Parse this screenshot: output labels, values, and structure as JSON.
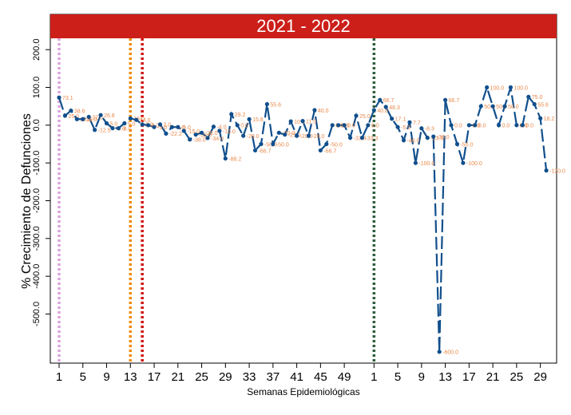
{
  "chart_data": {
    "type": "line",
    "title": "2021 - 2022",
    "xlabel": "Semanas Epidemiológicas",
    "ylabel": "% Crecimiento de Defunciones",
    "categories": [
      "1",
      null,
      null,
      null,
      "5",
      null,
      null,
      null,
      "9",
      null,
      null,
      null,
      "13",
      null,
      null,
      null,
      "17",
      null,
      null,
      null,
      "21",
      null,
      null,
      null,
      "25",
      null,
      null,
      null,
      "29",
      null,
      null,
      null,
      "33",
      null,
      null,
      null,
      "37",
      null,
      null,
      null,
      "41",
      null,
      null,
      null,
      "45",
      null,
      null,
      null,
      "49",
      null,
      null,
      null,
      null,
      "1",
      null,
      null,
      null,
      "5",
      null,
      null,
      null,
      "9",
      null,
      null,
      null,
      "13",
      null,
      null,
      null,
      "17",
      null,
      null,
      null,
      "21",
      null,
      null,
      null,
      "25",
      null,
      null,
      null,
      "29",
      null
    ],
    "series": [
      {
        "name": "Crecimiento",
        "color": "#114f8c",
        "label_color": "#e8884a",
        "values": [
          73.1,
          25,
          38.6,
          16,
          16,
          22,
          -12.5,
          26.8,
          5,
          -8,
          -8,
          5,
          18,
          14,
          2,
          0,
          -5,
          2,
          -22.2,
          -5,
          -5,
          -15,
          -38,
          -25,
          -20,
          -34,
          -4,
          -15,
          -88.2,
          29.2,
          0,
          -28,
          15.8,
          -66.7,
          -50,
          55.6,
          -50,
          -20,
          -25,
          10,
          -28,
          11,
          -28,
          40,
          -66.7,
          -50,
          0,
          0,
          0,
          -33.3,
          25,
          -33.3,
          0,
          40,
          66.7,
          48.3,
          17.1,
          -5,
          -40,
          7.7,
          -100,
          -8.3,
          -33.3,
          -30,
          -600,
          66.7,
          0,
          -50,
          -100,
          0,
          0,
          50,
          100,
          50,
          0,
          50,
          100,
          0,
          0,
          75,
          55.6,
          18.2,
          -120
        ],
        "value_labels": [
          "73.1",
          "25.0",
          "38.6",
          "16.0",
          "16.0",
          "22.0",
          "-12.5",
          "26.8",
          "5.0",
          "-8.0",
          "-8.0",
          "5.0",
          "18.0",
          "14.0",
          "2.0",
          "0.0",
          "-5.0",
          "2.0",
          "-22.2",
          "-5.0",
          "-5.0",
          "-15.0",
          "-38.0",
          "-25.0",
          "-20.0",
          "-34.0",
          "-4.0",
          "-15.0",
          "-88.2",
          "29.2",
          "0.0",
          "-28.0",
          "15.8",
          "-66.7",
          "-50.0",
          "55.6",
          "-50.0",
          "-20.0",
          "-25.0",
          "10.0",
          "-28.0",
          "11.0",
          "-28.0",
          "40.0",
          "-66.7",
          "-50.0",
          "0.0",
          "0.0",
          "0.0",
          "-33.3",
          "25.0",
          "-33.3",
          "0.0",
          "40.0",
          "66.7",
          "48.3",
          "17.1",
          "-5.0",
          "-40.0",
          "7.7",
          "-100.0",
          "-8.3",
          "-33.3",
          "-30.0",
          "-600.0",
          "66.7",
          "0.0",
          "-50.0",
          "-100.0",
          "0.0",
          "0.0",
          "50.0",
          "100.0",
          "50.0",
          "0.0",
          "50.0",
          "100.0",
          "0.0",
          "0.0",
          "75.0",
          "55.6",
          "18.2",
          "-120.0"
        ]
      }
    ],
    "ylim": [
      -630,
      230
    ],
    "yticks": [
      {
        "value": 200,
        "label": "200.0"
      },
      {
        "value": 100,
        "label": "100.0"
      },
      {
        "value": 0,
        "label": "0.0"
      },
      {
        "value": -100,
        "label": "-100.0"
      },
      {
        "value": -200,
        "label": "-200.0"
      },
      {
        "value": -300,
        "label": "-300.0"
      },
      {
        "value": -400,
        "label": "-400.0"
      },
      {
        "value": -500,
        "label": "-500.0"
      }
    ],
    "vlines": [
      {
        "at": 0,
        "color": "#dda0dd"
      },
      {
        "at": 12,
        "color": "#f08a00"
      },
      {
        "at": 14,
        "color": "#d01010"
      },
      {
        "at": 53,
        "color": "#2e5e3a"
      }
    ]
  }
}
